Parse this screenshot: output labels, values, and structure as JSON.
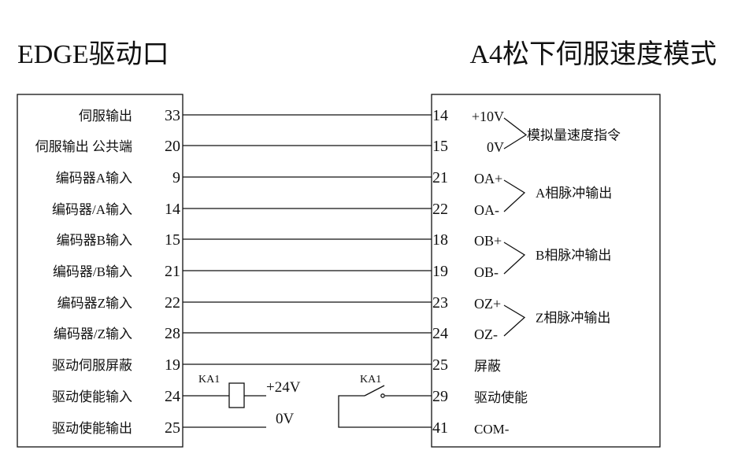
{
  "title_left": "EDGE驱动口",
  "title_right": "A4松下伺服速度模式",
  "left_rows": [
    {
      "label": "伺服输出",
      "pin": "33"
    },
    {
      "label": "伺服输出 公共端",
      "pin": "20"
    },
    {
      "label": "编码器A输入",
      "pin": "9"
    },
    {
      "label": "编码器/A输入",
      "pin": "14"
    },
    {
      "label": "编码器B输入",
      "pin": "15"
    },
    {
      "label": "编码器/B输入",
      "pin": "21"
    },
    {
      "label": "编码器Z输入",
      "pin": "22"
    },
    {
      "label": "编码器/Z输入",
      "pin": "28"
    },
    {
      "label": "驱动伺服屏蔽",
      "pin": "19"
    },
    {
      "label": "驱动使能输入",
      "pin": "24"
    },
    {
      "label": "驱动使能输出",
      "pin": "25"
    }
  ],
  "right_rows": [
    {
      "pin": "14",
      "signal": "+10V"
    },
    {
      "pin": "15",
      "signal": "0V"
    },
    {
      "pin": "21",
      "signal": "OA+"
    },
    {
      "pin": "22",
      "signal": "OA-"
    },
    {
      "pin": "18",
      "signal": "OB+"
    },
    {
      "pin": "19",
      "signal": "OB-"
    },
    {
      "pin": "23",
      "signal": "OZ+"
    },
    {
      "pin": "24",
      "signal": "OZ-"
    },
    {
      "pin": "25",
      "signal": "屏蔽"
    },
    {
      "pin": "29",
      "signal": "驱动使能"
    },
    {
      "pin": "41",
      "signal": "COM-"
    }
  ],
  "groups": [
    {
      "label": "模拟量速度指令"
    },
    {
      "label": "A相脉冲输出"
    },
    {
      "label": "B相脉冲输出"
    },
    {
      "label": "Z相脉冲输出"
    }
  ],
  "relay": {
    "coil_label": "KA1",
    "contact_label": "KA1",
    "supply_plus": "+24V",
    "supply_zero": "0V"
  }
}
